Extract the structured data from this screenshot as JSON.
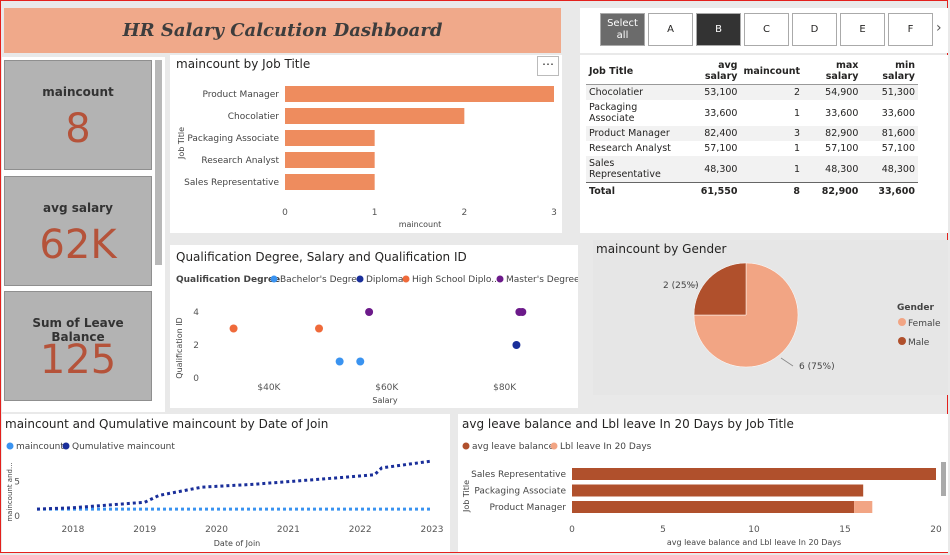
{
  "header": {
    "title": "HR Salary Calcution Dashboard"
  },
  "cards": [
    {
      "label": "maincount",
      "value": "8"
    },
    {
      "label": "avg salary",
      "value": "62K"
    },
    {
      "label": "Sum of Leave Balance",
      "value": "125"
    }
  ],
  "slicer": {
    "items": [
      "Select all",
      "A",
      "B",
      "C",
      "D",
      "E",
      "F"
    ],
    "selected": "B",
    "next_icon": "chevron-right-icon"
  },
  "job_bar": {
    "title": "maincount by Job Title",
    "ylabel": "Job Title",
    "xlabel": "maincount",
    "more_icon": "more-options-icon"
  },
  "table": {
    "columns": [
      "Job Title",
      "avg salary",
      "maincount",
      "max salary",
      "min salary"
    ],
    "rows": [
      [
        "Chocolatier",
        "53,100",
        "2",
        "54,900",
        "51,300"
      ],
      [
        "Packaging Associate",
        "33,600",
        "1",
        "33,600",
        "33,600"
      ],
      [
        "Product Manager",
        "82,400",
        "3",
        "82,900",
        "81,600"
      ],
      [
        "Research Analyst",
        "57,100",
        "1",
        "57,100",
        "57,100"
      ],
      [
        "Sales Representative",
        "48,300",
        "1",
        "48,300",
        "48,300"
      ]
    ],
    "total": [
      "Total",
      "61,550",
      "8",
      "82,900",
      "33,600"
    ]
  },
  "scatter": {
    "title": "Qualification Degree, Salary and Qualification ID",
    "legend_title": "Qualification Degree",
    "xlabel": "Salary",
    "ylabel": "Qualification ID"
  },
  "gender_pie": {
    "title": "maincount by Gender",
    "legend_title": "Gender"
  },
  "cumulative": {
    "title": "maincount and Qumulative maincount by Date of Join",
    "xlabel": "Date of Join",
    "ylabel": "maincount and..."
  },
  "leave_bar": {
    "title": "avg leave balance and Lbl leave In 20 Days by Job Title",
    "ylabel": "Job Title",
    "xlabel": "avg leave balance and Lbl leave In 20 Days"
  },
  "colors": {
    "accent": "#b5533a",
    "bar": "#ee8c5e",
    "banner": "#f0a98a",
    "female": "#f2a584",
    "male": "#b0502c",
    "light_blue": "#3a93f0",
    "dark_blue": "#1a2f9a",
    "orange": "#ef6a3a",
    "purple": "#6c1a8a"
  },
  "chart_data": [
    {
      "type": "bar",
      "orientation": "horizontal",
      "categories": [
        "Product Manager",
        "Chocolatier",
        "Packaging Associate",
        "Research Analyst",
        "Sales Representative"
      ],
      "values": [
        3,
        2,
        1,
        1,
        1
      ],
      "xlim": [
        0,
        3
      ],
      "xticks": [
        0,
        1,
        2,
        3
      ]
    },
    {
      "type": "scatter",
      "series": [
        {
          "name": "Bachelor's Degree",
          "points": [
            [
              52000,
              1
            ],
            [
              55500,
              1
            ]
          ]
        },
        {
          "name": "Diploma",
          "points": [
            [
              82000,
              2
            ]
          ]
        },
        {
          "name": "High School Diplo...",
          "points": [
            [
              34000,
              3
            ],
            [
              48500,
              3
            ]
          ]
        },
        {
          "name": "Master's Degree",
          "points": [
            [
              57000,
              4
            ],
            [
              82500,
              4
            ],
            [
              83000,
              4
            ]
          ]
        }
      ],
      "xticks": [
        "$40K",
        "$60K",
        "$80K"
      ],
      "xtick_values": [
        40000,
        60000,
        80000
      ],
      "xlim": [
        30000,
        86000
      ],
      "ylim": [
        0,
        4
      ],
      "yticks": [
        0,
        2,
        4
      ]
    },
    {
      "type": "pie",
      "labels": [
        "Female",
        "Male"
      ],
      "values": [
        6,
        2
      ],
      "data_labels": [
        "6 (75%)",
        "2 (25%)"
      ]
    },
    {
      "type": "line",
      "series": [
        {
          "name": "maincount",
          "x": [
            2017.5,
            2023
          ],
          "y": [
            1,
            1
          ]
        },
        {
          "name": "Qumulative maincount",
          "x": [
            2017.5,
            2018.0,
            2018.5,
            2019.0,
            2019.2,
            2019.5,
            2019.8,
            2020.5,
            2021.0,
            2021.5,
            2022.2,
            2022.3,
            2023.0
          ],
          "y": [
            1,
            1.2,
            1.6,
            2.0,
            3.0,
            3.6,
            4.2,
            4.6,
            5.0,
            5.4,
            6.0,
            7.0,
            8.0
          ]
        }
      ],
      "xticks": [
        "2018",
        "2019",
        "2020",
        "2021",
        "2022",
        "2023"
      ],
      "xlim": [
        2017.5,
        2023
      ],
      "ylim": [
        0,
        8
      ],
      "yticks": [
        0,
        5
      ]
    },
    {
      "type": "bar",
      "orientation": "horizontal",
      "stacked": true,
      "categories": [
        "Sales Representative",
        "Packaging Associate",
        "Product Manager"
      ],
      "series": [
        {
          "name": "avg leave balance",
          "values": [
            20,
            16,
            15.5
          ]
        },
        {
          "name": "Lbl leave In 20 Days",
          "values": [
            0,
            0,
            1
          ]
        }
      ],
      "xlim": [
        0,
        20
      ],
      "xticks": [
        0,
        5,
        10,
        15,
        20
      ]
    }
  ]
}
